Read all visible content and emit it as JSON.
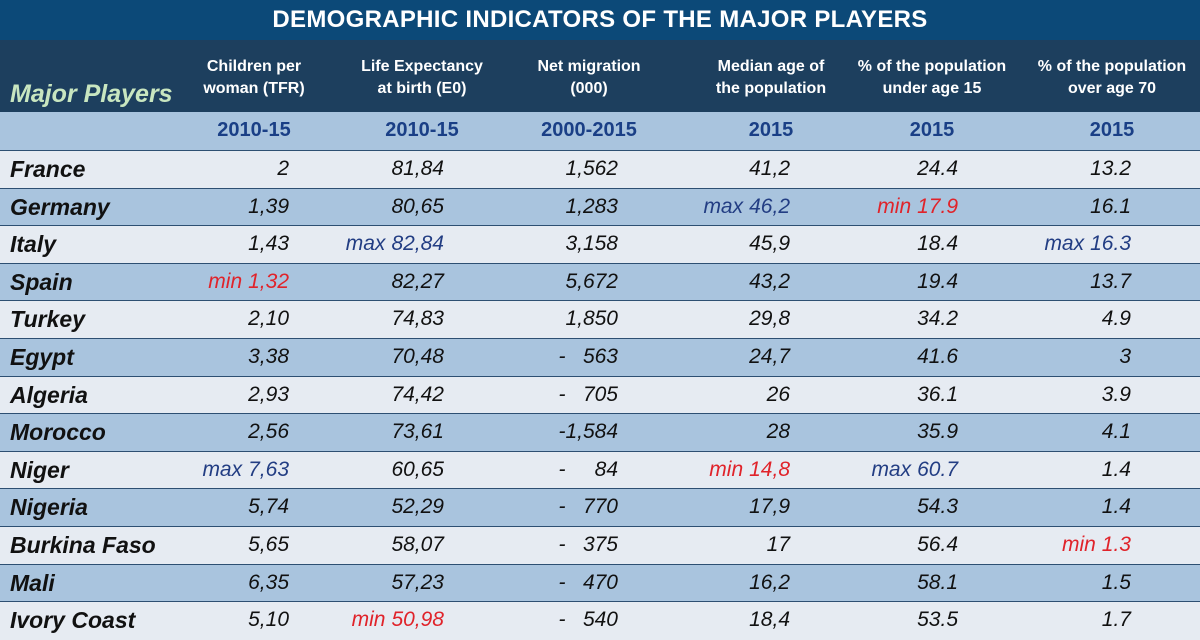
{
  "title": "DEMOGRAPHIC INDICATORS OF THE MAJOR PLAYERS",
  "header": {
    "players": "Major Players",
    "columns": [
      {
        "label": "Children per\nwoman (TFR)",
        "period": "2010-15"
      },
      {
        "label": "Life Expectancy\nat birth (E0)",
        "period": "2010-15"
      },
      {
        "label": "Net migration\n(000)",
        "period": "2000-2015"
      },
      {
        "label": "Median age of\nthe population",
        "period": "2015"
      },
      {
        "label": "% of the population\nunder age 15",
        "period": "2015"
      },
      {
        "label": "% of the population\nover age 70",
        "period": "2015"
      }
    ]
  },
  "chart_data": {
    "type": "table",
    "title": "DEMOGRAPHIC INDICATORS OF THE MAJOR PLAYERS",
    "rows": [
      {
        "country": "France",
        "values": [
          "2",
          "81,84",
          "1,562",
          "41,2",
          "24.4",
          "13.2"
        ],
        "tags": [
          "",
          "",
          "",
          "",
          "",
          ""
        ]
      },
      {
        "country": "Germany",
        "values": [
          "1,39",
          "80,65",
          "1,283",
          "46,2",
          "17.9",
          "16.1"
        ],
        "tags": [
          "",
          "",
          "",
          "max",
          "min",
          ""
        ]
      },
      {
        "country": "Italy",
        "values": [
          "1,43",
          "82,84",
          "3,158",
          "45,9",
          "18.4",
          "16.3"
        ],
        "tags": [
          "",
          "max",
          "",
          "",
          "",
          "max"
        ]
      },
      {
        "country": "Spain",
        "values": [
          "1,32",
          "82,27",
          "5,672",
          "43,2",
          "19.4",
          "13.7"
        ],
        "tags": [
          "min",
          "",
          "",
          "",
          "",
          ""
        ]
      },
      {
        "country": "Turkey",
        "values": [
          "2,10",
          "74,83",
          "1,850",
          "29,8",
          "34.2",
          "4.9"
        ],
        "tags": [
          "",
          "",
          "",
          "",
          "",
          ""
        ]
      },
      {
        "country": "Egypt",
        "values": [
          "3,38",
          "70,48",
          "-   563",
          "24,7",
          "41.6",
          "3"
        ],
        "tags": [
          "",
          "",
          "",
          "",
          "",
          ""
        ]
      },
      {
        "country": "Algeria",
        "values": [
          "2,93",
          "74,42",
          "-   705",
          "26",
          "36.1",
          "3.9"
        ],
        "tags": [
          "",
          "",
          "",
          "",
          "",
          ""
        ]
      },
      {
        "country": "Morocco",
        "values": [
          "2,56",
          "73,61",
          "-1,584",
          "28",
          "35.9",
          "4.1"
        ],
        "tags": [
          "",
          "",
          "",
          "",
          "",
          ""
        ]
      },
      {
        "country": "Niger",
        "values": [
          "7,63",
          "60,65",
          "-     84",
          "14,8",
          "60.7",
          "1.4"
        ],
        "tags": [
          "max",
          "",
          "",
          "min",
          "max",
          ""
        ]
      },
      {
        "country": "Nigeria",
        "values": [
          "5,74",
          "52,29",
          "-   770",
          "17,9",
          "54.3",
          "1.4"
        ],
        "tags": [
          "",
          "",
          "",
          "",
          "",
          ""
        ]
      },
      {
        "country": "Burkina Faso",
        "values": [
          "5,65",
          "58,07",
          "-   375",
          "17",
          "56.4",
          "1.3"
        ],
        "tags": [
          "",
          "",
          "",
          "",
          "",
          "min"
        ]
      },
      {
        "country": "Mali",
        "values": [
          "6,35",
          "57,23",
          "-   470",
          "16,2",
          "58.1",
          "1.5"
        ],
        "tags": [
          "",
          "",
          "",
          "",
          "",
          ""
        ]
      },
      {
        "country": "Ivory Coast",
        "values": [
          "5,10",
          "50,98",
          "-   540",
          "18,4",
          "53.5",
          "1.7"
        ],
        "tags": [
          "",
          "min",
          "",
          "",
          "",
          ""
        ]
      }
    ]
  },
  "colors": {
    "title_bg": "#0c4978",
    "header_bg": "#1d3f5e",
    "band_dark": "#a9c4de",
    "band_light": "#e6ebf2",
    "max_color": "#223d83",
    "min_color": "#e0232a",
    "players_color": "#c8e6c0"
  }
}
